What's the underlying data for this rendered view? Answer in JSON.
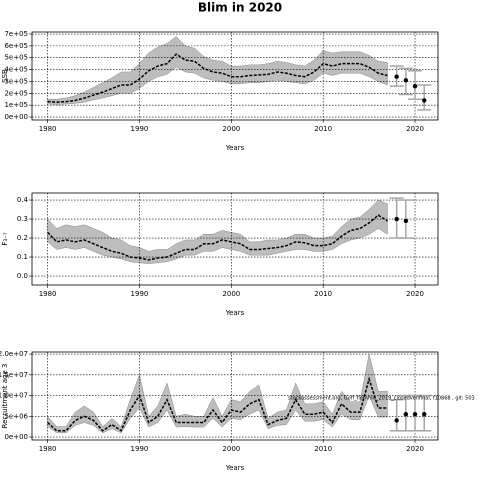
{
  "chart_data": [
    {
      "type": "line",
      "title": "Blim in 2020",
      "x_label": "Years",
      "y_label": "SSB",
      "color": "#000000",
      "band_color": "#bdbdbd",
      "forecast_color": "#a6a6a6",
      "grid": true,
      "x": [
        1980,
        1981,
        1982,
        1983,
        1984,
        1985,
        1986,
        1987,
        1988,
        1989,
        1990,
        1991,
        1992,
        1993,
        1994,
        1995,
        1996,
        1997,
        1998,
        1999,
        2000,
        2001,
        2002,
        2003,
        2004,
        2005,
        2006,
        2007,
        2008,
        2009,
        2010,
        2011,
        2012,
        2013,
        2014,
        2015,
        2016,
        2017
      ],
      "values": [
        130000,
        125000,
        130000,
        140000,
        160000,
        185000,
        210000,
        240000,
        270000,
        270000,
        320000,
        390000,
        430000,
        450000,
        530000,
        480000,
        470000,
        410000,
        380000,
        370000,
        340000,
        340000,
        350000,
        355000,
        360000,
        380000,
        370000,
        350000,
        340000,
        380000,
        450000,
        430000,
        450000,
        450000,
        450000,
        420000,
        370000,
        350000
      ],
      "upper": [
        150000,
        150000,
        160000,
        180000,
        210000,
        250000,
        290000,
        330000,
        380000,
        380000,
        450000,
        540000,
        590000,
        620000,
        680000,
        600000,
        580000,
        510000,
        480000,
        470000,
        430000,
        430000,
        440000,
        440000,
        450000,
        470000,
        460000,
        440000,
        430000,
        480000,
        560000,
        540000,
        550000,
        550000,
        550000,
        520000,
        470000,
        460000
      ],
      "lower": [
        110000,
        105000,
        110000,
        115000,
        125000,
        145000,
        160000,
        180000,
        200000,
        200000,
        240000,
        300000,
        340000,
        360000,
        420000,
        380000,
        370000,
        330000,
        310000,
        300000,
        280000,
        280000,
        290000,
        290000,
        300000,
        310000,
        300000,
        290000,
        280000,
        310000,
        370000,
        350000,
        370000,
        370000,
        370000,
        340000,
        300000,
        270000
      ],
      "forecast": {
        "x": [
          2018,
          2019,
          2020,
          2021
        ],
        "values": [
          340000,
          310000,
          260000,
          140000
        ],
        "lower": [
          260000,
          190000,
          150000,
          60000
        ],
        "upper": [
          430000,
          410000,
          390000,
          270000
        ]
      },
      "xlim": [
        1978.3,
        2022.5
      ],
      "xticks": [
        1980,
        1990,
        2000,
        2010,
        2020
      ],
      "ylim": [
        -25000,
        717000
      ],
      "yticks": [
        {
          "value": 0,
          "label": "0e+00"
        },
        {
          "value": 100000,
          "label": "1e+05"
        },
        {
          "value": 200000,
          "label": "2e+05"
        },
        {
          "value": 300000,
          "label": "3e+05"
        },
        {
          "value": 400000,
          "label": "4e+05"
        },
        {
          "value": 500000,
          "label": "5e+05"
        },
        {
          "value": 600000,
          "label": "6e+05"
        },
        {
          "value": 700000,
          "label": "7e+05"
        }
      ]
    },
    {
      "type": "line",
      "x_label": "Years",
      "y_label": "F₃₋₇",
      "color": "#000000",
      "band_color": "#bdbdbd",
      "forecast_color": "#a6a6a6",
      "grid": true,
      "x": [
        1980,
        1981,
        1982,
        1983,
        1984,
        1985,
        1986,
        1987,
        1988,
        1989,
        1990,
        1991,
        1992,
        1993,
        1994,
        1995,
        1996,
        1997,
        1998,
        1999,
        2000,
        2001,
        2002,
        2003,
        2004,
        2005,
        2006,
        2007,
        2008,
        2009,
        2010,
        2011,
        2012,
        2013,
        2014,
        2015,
        2016,
        2017
      ],
      "values": [
        0.23,
        0.18,
        0.19,
        0.18,
        0.19,
        0.17,
        0.15,
        0.13,
        0.12,
        0.1,
        0.095,
        0.085,
        0.095,
        0.1,
        0.12,
        0.14,
        0.14,
        0.17,
        0.17,
        0.19,
        0.18,
        0.17,
        0.14,
        0.14,
        0.145,
        0.15,
        0.16,
        0.18,
        0.175,
        0.16,
        0.16,
        0.17,
        0.21,
        0.24,
        0.25,
        0.28,
        0.32,
        0.29
      ],
      "upper": [
        0.3,
        0.25,
        0.27,
        0.26,
        0.27,
        0.25,
        0.23,
        0.2,
        0.19,
        0.16,
        0.15,
        0.13,
        0.14,
        0.14,
        0.17,
        0.19,
        0.19,
        0.22,
        0.22,
        0.24,
        0.23,
        0.22,
        0.18,
        0.18,
        0.19,
        0.19,
        0.2,
        0.22,
        0.22,
        0.2,
        0.2,
        0.21,
        0.26,
        0.3,
        0.31,
        0.35,
        0.4,
        0.38
      ],
      "lower": [
        0.18,
        0.14,
        0.15,
        0.14,
        0.15,
        0.13,
        0.11,
        0.1,
        0.09,
        0.075,
        0.07,
        0.065,
        0.07,
        0.075,
        0.09,
        0.11,
        0.11,
        0.13,
        0.13,
        0.15,
        0.14,
        0.13,
        0.11,
        0.11,
        0.11,
        0.12,
        0.13,
        0.14,
        0.14,
        0.13,
        0.13,
        0.14,
        0.17,
        0.19,
        0.2,
        0.22,
        0.25,
        0.22
      ],
      "forecast": {
        "x": [
          2018,
          2019
        ],
        "values": [
          0.3,
          0.29
        ],
        "lower": [
          0.2,
          0.2
        ],
        "upper": [
          0.41,
          0.4
        ]
      },
      "xlim": [
        1978.3,
        2022.5
      ],
      "xticks": [
        1980,
        1990,
        2000,
        2010,
        2020
      ],
      "ylim": [
        -0.047,
        0.437
      ],
      "yticks": [
        {
          "value": 0,
          "label": "0.0"
        },
        0.1,
        0.2,
        0.3,
        0.4
      ]
    },
    {
      "type": "line",
      "x_label": "Years",
      "y_label": "Recruitment age 3",
      "annotation": "stockassessment.org, Goff_flemmit_2019_closedvenfinal, f10868 , git: 503",
      "color": "#000000",
      "band_color": "#bdbdbd",
      "forecast_color": "#a6a6a6",
      "grid": true,
      "x": [
        1980,
        1981,
        1982,
        1983,
        1984,
        1985,
        1986,
        1987,
        1988,
        1989,
        1990,
        1991,
        1992,
        1993,
        1994,
        1995,
        1996,
        1997,
        1998,
        1999,
        2000,
        2001,
        2002,
        2003,
        2004,
        2005,
        2006,
        2007,
        2008,
        2009,
        2010,
        2011,
        2012,
        2013,
        2014,
        2015,
        2016,
        2017
      ],
      "values": [
        3500000,
        1500000,
        1500000,
        4000000,
        5000000,
        4000000,
        1500000,
        3000000,
        1500000,
        6500000,
        10000000,
        3500000,
        5000000,
        9000000,
        3500000,
        3500000,
        3500000,
        3500000,
        6500000,
        3500000,
        6500000,
        6000000,
        8000000,
        9000000,
        3000000,
        4000000,
        4500000,
        9000000,
        5500000,
        5500000,
        6000000,
        3500000,
        8000000,
        6000000,
        6000000,
        14000000,
        7000000,
        7000000
      ],
      "upper": [
        5000000,
        2500000,
        2500000,
        6000000,
        7500000,
        6000000,
        2500000,
        4500000,
        2500000,
        9000000,
        15000000,
        5000000,
        7500000,
        13000000,
        5000000,
        5500000,
        5000000,
        5000000,
        9500000,
        5000000,
        9000000,
        8500000,
        11000000,
        12500000,
        4500000,
        6000000,
        6500000,
        13000000,
        8000000,
        8000000,
        8500000,
        5500000,
        11000000,
        8500000,
        8500000,
        20000000,
        11000000,
        11000000
      ],
      "lower": [
        2500000,
        1000000,
        1000000,
        2800000,
        3500000,
        2800000,
        1000000,
        2000000,
        1000000,
        4500000,
        7000000,
        2400000,
        3500000,
        6500000,
        2400000,
        2500000,
        2400000,
        2400000,
        4500000,
        2400000,
        4500000,
        4200000,
        5500000,
        6500000,
        2000000,
        2800000,
        3000000,
        6500000,
        3800000,
        3800000,
        4200000,
        2400000,
        5500000,
        4200000,
        4200000,
        10000000,
        4800000,
        4800000
      ],
      "forecast": {
        "x": [
          2018,
          2019,
          2020,
          2021
        ],
        "values": [
          4000000,
          5500000,
          5500000,
          5500000
        ],
        "lower": [
          1500000,
          1500000,
          1500000,
          1500000
        ],
        "upper": [
          9000000,
          10000000,
          10000000,
          10000000
        ]
      },
      "xlim": [
        1978.3,
        2022.5
      ],
      "xticks": [
        1980,
        1990,
        2000,
        2010,
        2020
      ],
      "ylim": [
        -720000,
        20500000
      ],
      "yticks": [
        {
          "value": 0,
          "label": "0e+00"
        },
        {
          "value": 5000000,
          "label": "5e+06"
        },
        {
          "value": 10000000,
          "label": "1.0e+07"
        },
        {
          "value": 15000000,
          "label": "1.5e+07"
        },
        {
          "value": 20000000,
          "label": "2.0e+07"
        }
      ]
    }
  ]
}
